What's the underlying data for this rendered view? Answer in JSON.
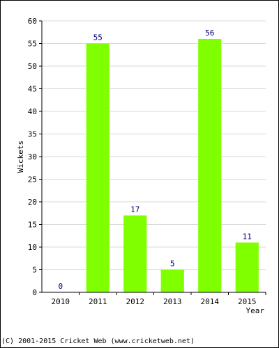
{
  "chart_data": {
    "type": "bar",
    "categories": [
      "2010",
      "2011",
      "2012",
      "2013",
      "2014",
      "2015"
    ],
    "values": [
      0,
      55,
      17,
      5,
      56,
      11
    ],
    "data_labels": [
      "0",
      "55",
      "17",
      "5",
      "56",
      "11"
    ],
    "title": "",
    "xlabel": "Year",
    "ylabel": "Wickets",
    "ylim": [
      0,
      60
    ],
    "yticks": [
      0,
      5,
      10,
      15,
      20,
      25,
      30,
      35,
      40,
      45,
      50,
      55,
      60
    ],
    "grid": true,
    "legend": "none",
    "bar_color": "#80ff00",
    "label_color": "#000080",
    "grid_color": "#d9d9d9"
  },
  "footer": {
    "copyright": "(C) 2001-2015 Cricket Web (www.cricketweb.net)"
  }
}
